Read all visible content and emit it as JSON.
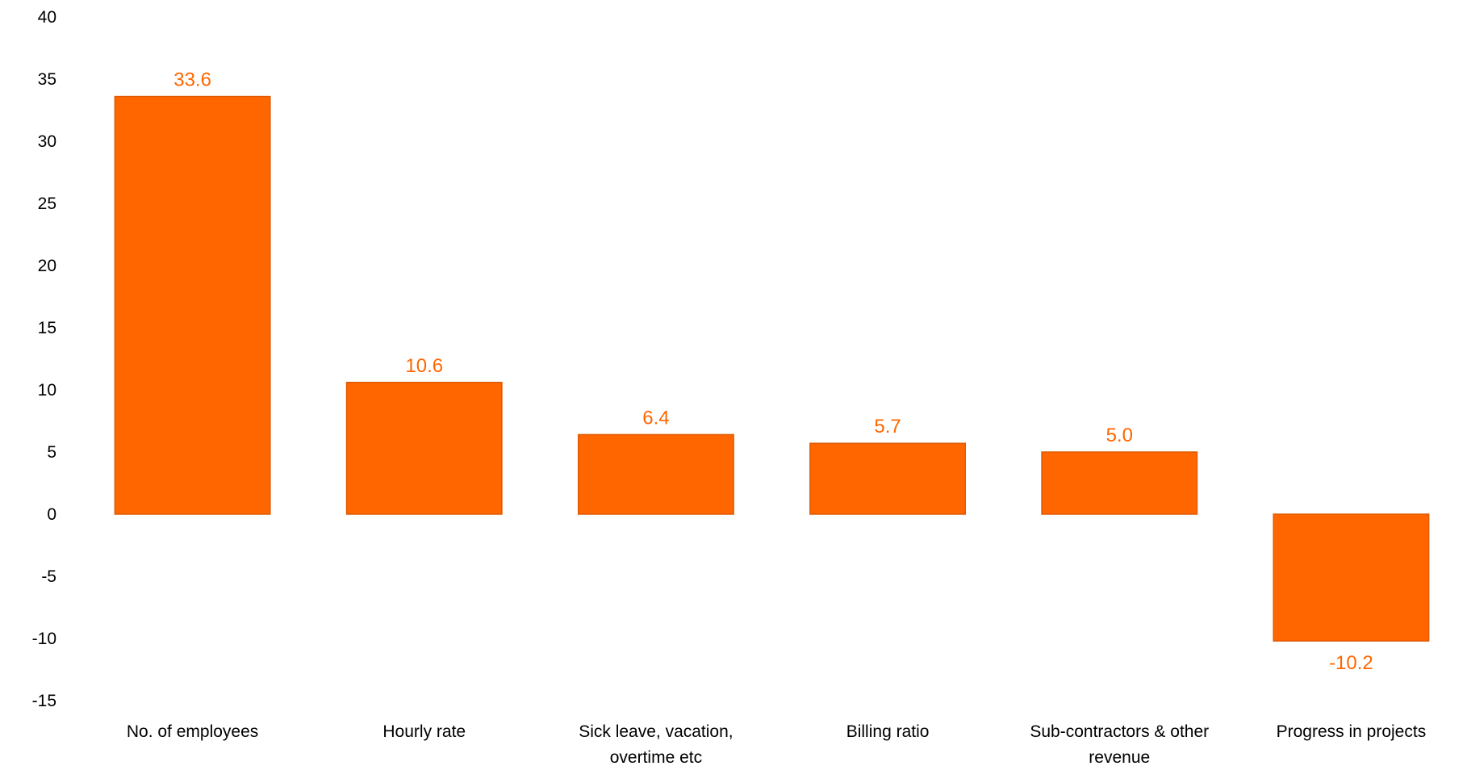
{
  "chart_data": {
    "type": "bar",
    "title": "",
    "xlabel": "",
    "ylabel": "",
    "categories": [
      [
        "No. of employees"
      ],
      [
        "Hourly rate"
      ],
      [
        "Sick leave, vacation,",
        "overtime etc"
      ],
      [
        "Billing ratio"
      ],
      [
        "Sub-contractors & other",
        "revenue"
      ],
      [
        "Progress in projects"
      ]
    ],
    "values": [
      33.6,
      10.6,
      6.4,
      5.7,
      5.0,
      -10.2
    ],
    "data_labels": [
      "33.6",
      "10.6",
      "6.4",
      "5.7",
      "5.0",
      "-10.2"
    ],
    "ylim": [
      -15,
      40
    ],
    "yticks": [
      40,
      35,
      30,
      25,
      20,
      15,
      10,
      5,
      0,
      -5,
      -10,
      -15
    ],
    "grid": false,
    "legend": "none",
    "colors": {
      "bar_fill": "#ff6600",
      "bar_stroke": "#e05a00",
      "data_label": "#ff6600"
    }
  }
}
